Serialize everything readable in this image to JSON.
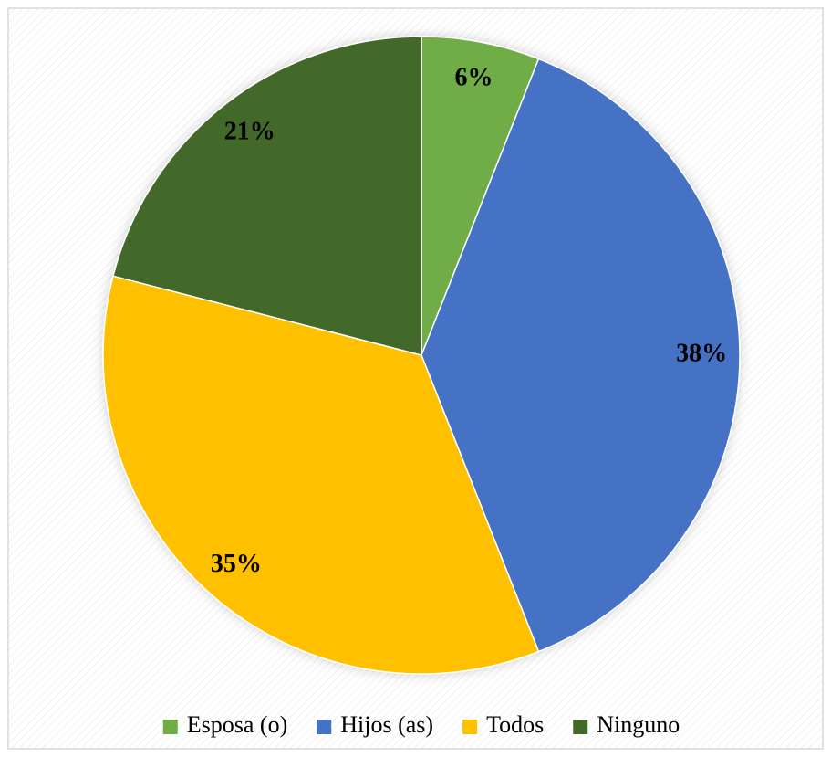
{
  "chart_data": {
    "type": "pie",
    "categories": [
      "Esposa (o)",
      "Hijos (as)",
      "Todos",
      "Ninguno"
    ],
    "values": [
      6,
      38,
      35,
      21
    ],
    "value_labels": [
      "6%",
      "38%",
      "35%",
      "21%"
    ],
    "colors": [
      "#70ad47",
      "#4472c4",
      "#ffc000",
      "#43682b"
    ],
    "legend": "bottom"
  }
}
